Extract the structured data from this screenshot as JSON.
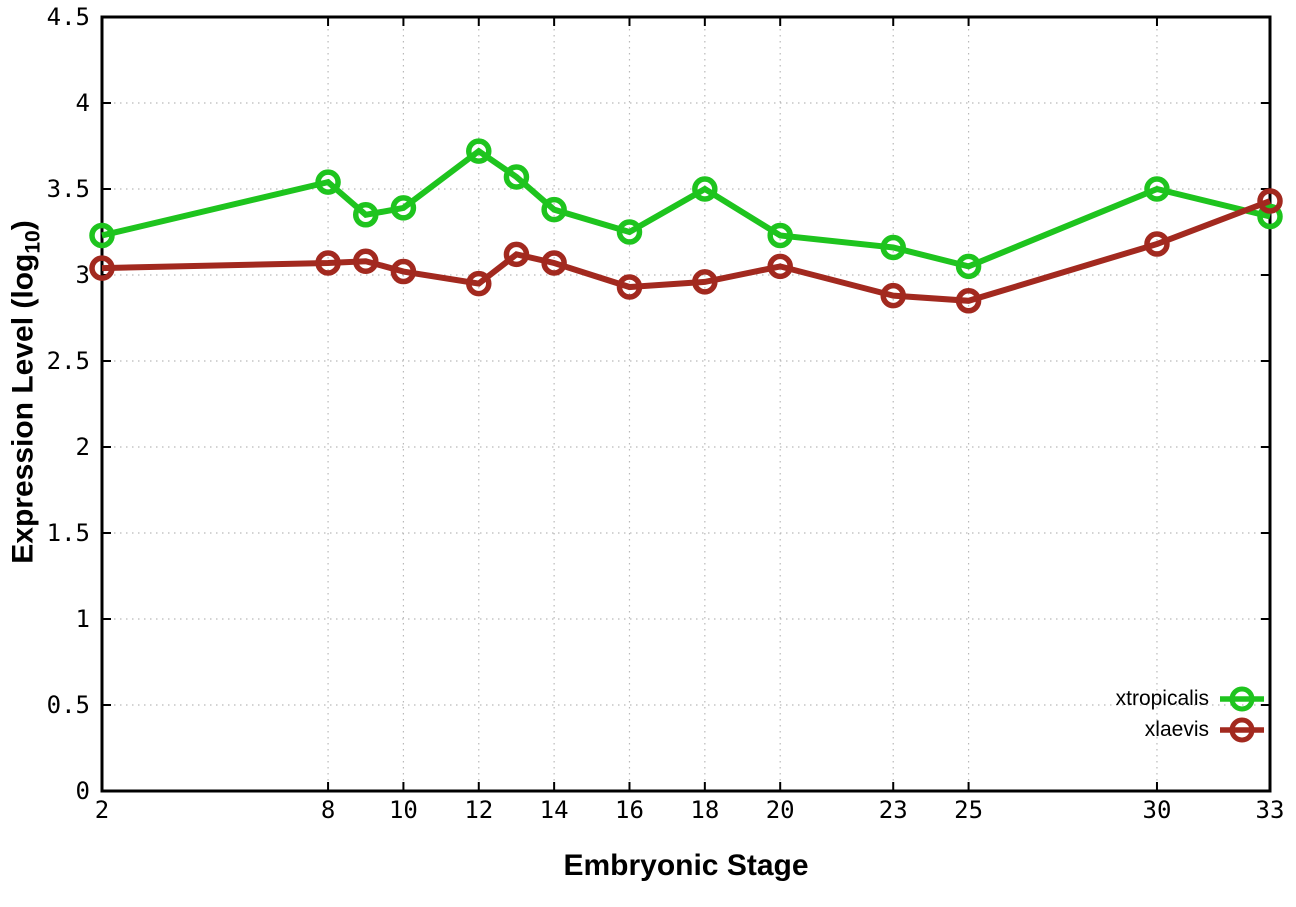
{
  "chart_data": {
    "type": "line",
    "title": "",
    "xlabel": "Embryonic Stage",
    "ylabel": {
      "prefix": "Expression Level (log",
      "sub": "10",
      "suffix": ")"
    },
    "xlim": [
      2,
      33
    ],
    "ylim": [
      0,
      4.5
    ],
    "grid": true,
    "legend_position": "bottom-right",
    "x_tick_values": [
      2,
      8,
      10,
      12,
      14,
      16,
      18,
      20,
      23,
      25,
      30,
      33
    ],
    "x_tick_labels": [
      "2",
      "8",
      "10",
      "12",
      "14",
      "16",
      "18",
      "20",
      "23",
      "25",
      "30",
      "33"
    ],
    "y_tick_values": [
      0,
      0.5,
      1,
      1.5,
      2,
      2.5,
      3,
      3.5,
      4,
      4.5
    ],
    "y_tick_labels": [
      "0",
      "0.5",
      "1",
      "1.5",
      "2",
      "2.5",
      "3",
      "3.5",
      "4",
      "4.5"
    ],
    "x": [
      2,
      8,
      9,
      10,
      12,
      13,
      14,
      16,
      18,
      20,
      23,
      25,
      30,
      33
    ],
    "series": [
      {
        "name": "xtropicalis",
        "color": "#1ec41e",
        "values": [
          3.23,
          3.54,
          3.35,
          3.39,
          3.72,
          3.57,
          3.38,
          3.25,
          3.5,
          3.23,
          3.16,
          3.05,
          3.5,
          3.34
        ]
      },
      {
        "name": "xlaevis",
        "color": "#a2291f",
        "values": [
          3.04,
          3.07,
          3.08,
          3.02,
          2.95,
          3.12,
          3.07,
          2.93,
          2.96,
          3.05,
          2.88,
          2.85,
          3.18,
          3.43
        ]
      }
    ],
    "colors": {
      "background": "#ffffff",
      "border": "#000000",
      "grid": "#b9b9b9",
      "tick_text": "#000000"
    }
  }
}
